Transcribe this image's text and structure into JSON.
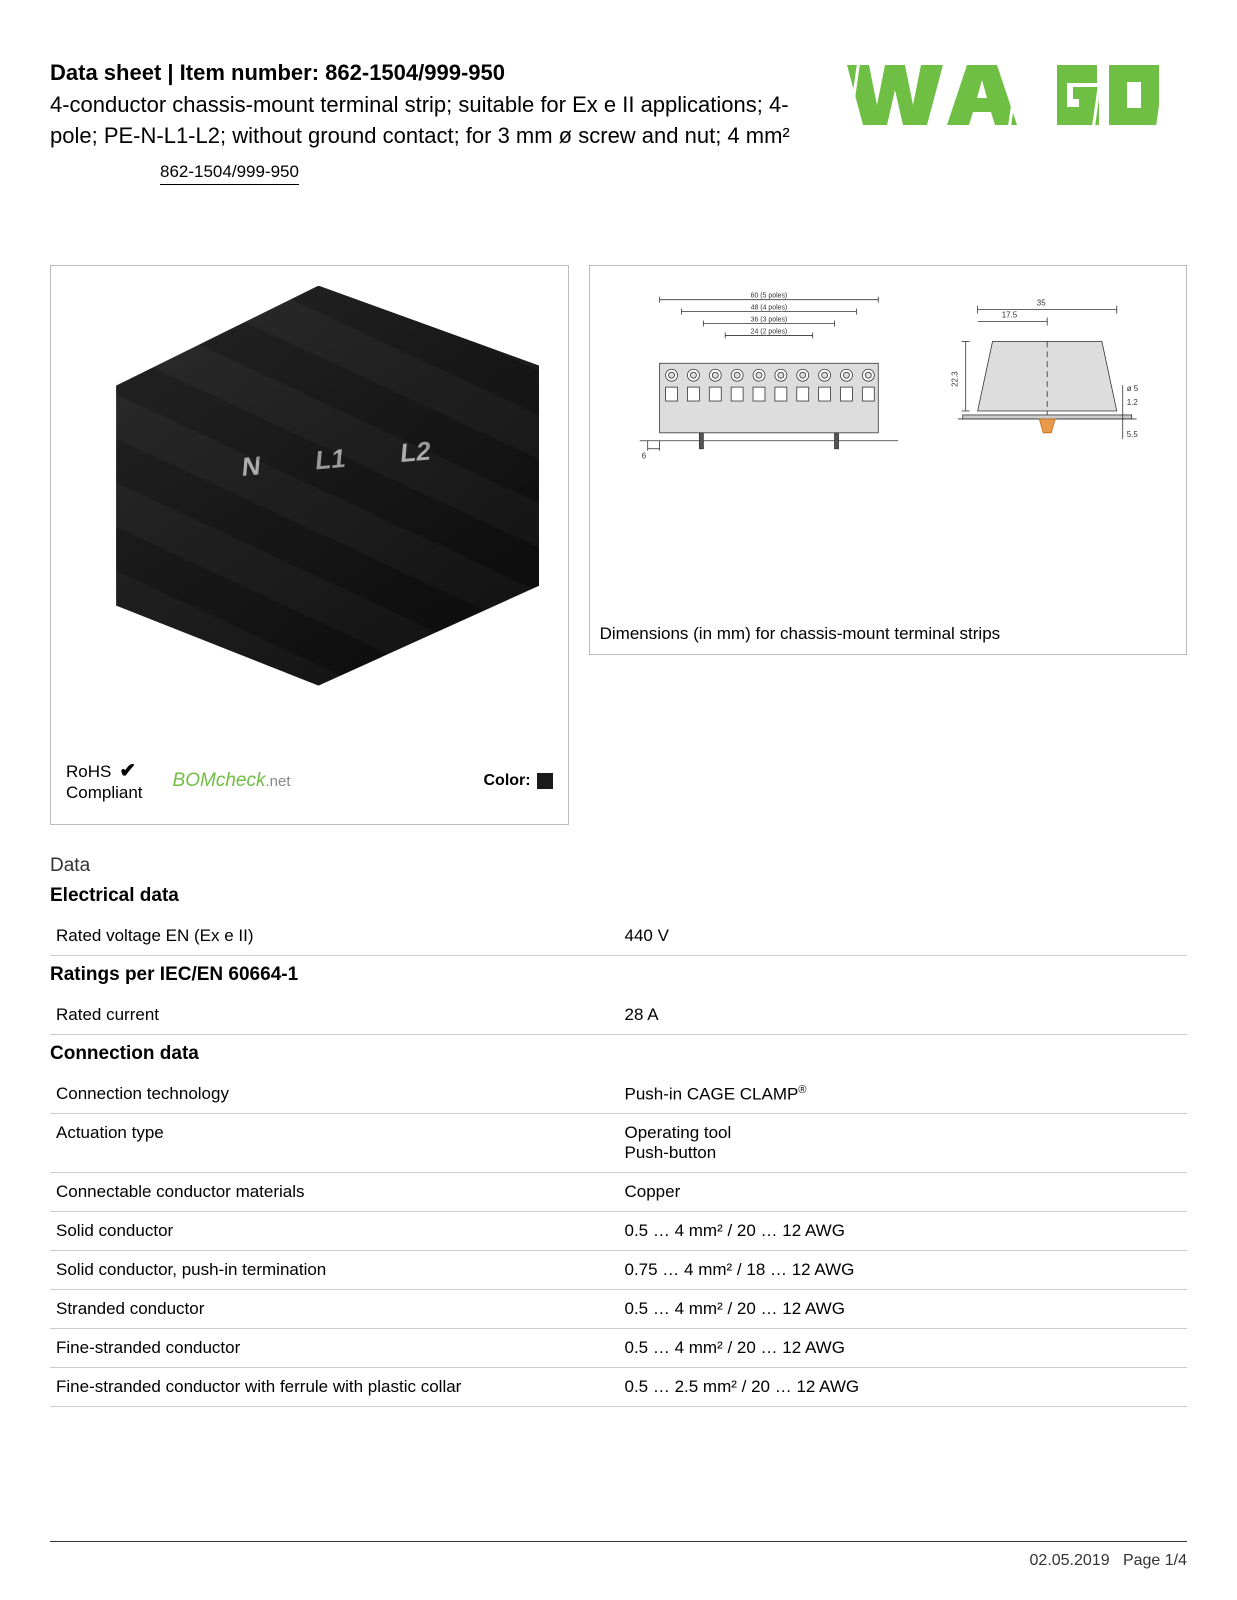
{
  "header": {
    "prefix": "Data sheet",
    "sep": "  |  ",
    "item_label": "Item number:",
    "item_number": "862-1504/999-950",
    "subtitle": "4-conductor chassis-mount terminal strip; suitable for Ex e II applications; 4-pole; PE-N-L1-L2; without ground contact; for 3 mm ø screw and nut; 4 mm²",
    "link_text": "862-1504/999-950"
  },
  "logo": {
    "text": "WAGO",
    "color": "#6fbf44"
  },
  "product_image": {
    "terminal_labels": [
      "",
      "N",
      "L1",
      "L2"
    ],
    "rohs_line1": "RoHS",
    "rohs_line2": "Compliant",
    "check": "✔",
    "bomcheck": "BOMcheck",
    "bomcheck_suffix": ".net",
    "color_label": "Color:",
    "color_swatch": "#1a1a1a"
  },
  "diagram": {
    "caption": "Dimensions (in mm) for chassis-mount terminal strips",
    "front": {
      "dims": [
        {
          "label": "60 (5 poles)",
          "y": 8
        },
        {
          "label": "48 (4 poles)",
          "y": 20
        },
        {
          "label": "36 (3 poles)",
          "y": 32
        },
        {
          "label": "24 (2 poles)",
          "y": 44
        }
      ],
      "bottom_dim": "6",
      "line_color": "#333333",
      "fill_color": "#dddddd",
      "text_fontsize": 7
    },
    "side": {
      "width_label": "35",
      "half_label": "17.5",
      "height_label": "22.3",
      "hole_label": "ø 5",
      "thk_label": "1.2",
      "foot_label": "5.5",
      "fill_color": "#dddddd",
      "accent_color": "#e89a4a"
    }
  },
  "data_section_title": "Data",
  "sections": [
    {
      "heading": "Electrical data",
      "rows": [
        {
          "label": "Rated voltage EN (Ex e II)",
          "value": "440 V"
        }
      ]
    },
    {
      "heading": "Ratings per IEC/EN 60664-1",
      "rows": [
        {
          "label": "Rated current",
          "value": "28 A"
        }
      ]
    },
    {
      "heading": "Connection data",
      "rows": [
        {
          "label": "Connection technology",
          "value": "Push-in CAGE CLAMP",
          "reg": "®"
        },
        {
          "label": "Actuation type",
          "value": "Operating tool\nPush-button"
        },
        {
          "label": "Connectable conductor materials",
          "value": "Copper"
        },
        {
          "label": "Solid conductor",
          "value": "0.5 … 4 mm² / 20 … 12 AWG"
        },
        {
          "label": "Solid conductor, push-in termination",
          "value": "0.75 … 4 mm² / 18 … 12 AWG"
        },
        {
          "label": "Stranded conductor",
          "value": "0.5 … 4 mm² / 20 … 12 AWG"
        },
        {
          "label": "Fine-stranded conductor",
          "value": "0.5 … 4 mm² / 20 … 12 AWG"
        },
        {
          "label": "Fine-stranded conductor with ferrule with plastic collar",
          "value": "0.5 … 2.5 mm² / 20 … 12 AWG"
        }
      ]
    }
  ],
  "footer": {
    "date": "02.05.2019",
    "page": "Page 1/4"
  }
}
